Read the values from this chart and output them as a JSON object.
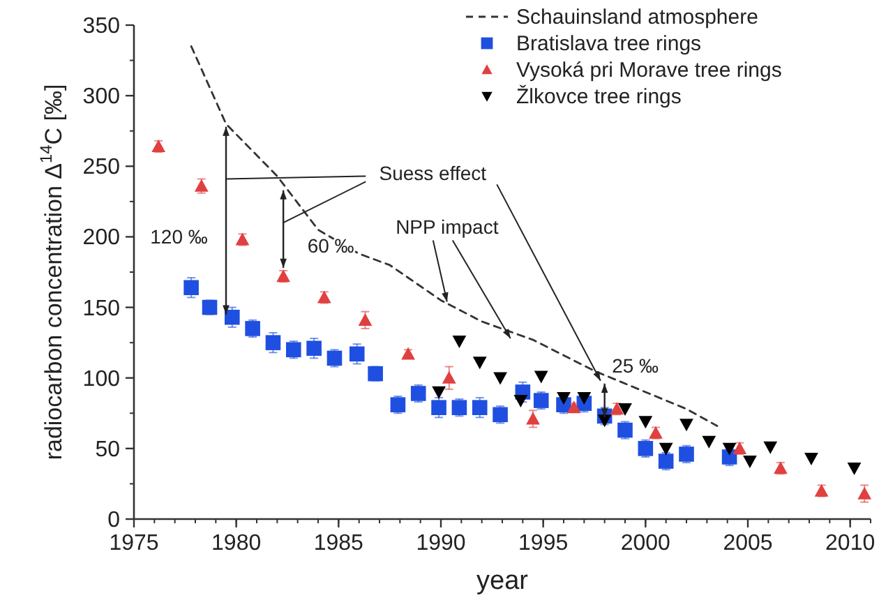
{
  "chart_data": {
    "type": "scatter",
    "xlabel": "year",
    "ylabel": "radiocarbon concentration Δ$^{14}$C [‰]",
    "xlim": [
      1975,
      2011
    ],
    "xticks": [
      1975,
      1980,
      1985,
      1990,
      1995,
      2000,
      2005,
      2010
    ],
    "ylim": [
      0,
      350
    ],
    "yticks": [
      0,
      50,
      100,
      150,
      200,
      250,
      300,
      350
    ],
    "legend": "top right",
    "grid": false,
    "series": [
      {
        "name": "Schauinsland atmosphere",
        "type": "line",
        "line_style": "dashed",
        "marker": "none",
        "color": "#333333",
        "x": [
          1977.8,
          1979.5,
          1982,
          1984,
          1986,
          1987.5,
          1990,
          1992,
          1994.5,
          1997.5,
          2000,
          2002,
          2003.5
        ],
        "values": [
          335,
          280,
          243,
          205,
          188,
          180,
          155,
          140,
          127,
          105,
          90,
          78,
          66
        ]
      },
      {
        "name": "Bratislava tree rings",
        "marker": "square",
        "color": "#1f4fe0",
        "x": [
          1977.8,
          1978.7,
          1979.8,
          1980.8,
          1981.8,
          1982.8,
          1983.8,
          1984.8,
          1985.9,
          1986.8,
          1987.9,
          1988.9,
          1989.9,
          1990.9,
          1991.9,
          1992.9,
          1994,
          1994.9,
          1996,
          1997,
          1998,
          1999,
          2000,
          2001,
          2002,
          2004.1
        ],
        "values": [
          164,
          150,
          143,
          135,
          125,
          120,
          121,
          114,
          117,
          103,
          81,
          89,
          79,
          79,
          79,
          74,
          90,
          84,
          81,
          82,
          73,
          63,
          50,
          41,
          46,
          44
        ],
        "errors": [
          7,
          5,
          7,
          6,
          7,
          6,
          7,
          6,
          7,
          5,
          6,
          6,
          7,
          6,
          7,
          6,
          7,
          6,
          6,
          6,
          6,
          6,
          6,
          6,
          6,
          6
        ]
      },
      {
        "name": "Vysoká pri Morave tree rings",
        "marker": "triangle",
        "color": "#e04040",
        "x": [
          1976.2,
          1978.3,
          1980.3,
          1982.3,
          1984.3,
          1986.3,
          1988.4,
          1990.4,
          1994.5,
          1996.5,
          1998.6,
          2000.5,
          2004.6,
          2006.6,
          2008.6,
          2010.7
        ],
        "values": [
          264,
          236,
          198,
          172,
          157,
          141,
          117,
          100,
          71,
          79,
          78,
          61,
          50,
          36,
          20,
          18
        ],
        "errors": [
          4,
          5,
          4,
          4,
          4,
          6,
          3,
          8,
          6,
          3,
          4,
          4,
          4,
          4,
          4,
          6
        ]
      },
      {
        "name": "Žlkovce tree rings",
        "marker": "triangle-down",
        "color": "#000000",
        "x": [
          1989.9,
          1990.9,
          1991.9,
          1992.9,
          1993.9,
          1994.9,
          1996,
          1997,
          1998,
          1999,
          2000,
          2001,
          2002,
          2003.1,
          2004.1,
          2005.1,
          2006.1,
          2008.1,
          2010.2
        ],
        "values": [
          90,
          126,
          111,
          100,
          84,
          101,
          86,
          86,
          70,
          78,
          69,
          50,
          67,
          55,
          50,
          41,
          51,
          43,
          36
        ]
      }
    ],
    "annotations": [
      "Suess effect",
      "120 ‰",
      {
        "text": "60 ‰",
        "x": 1982.3,
        "y": 172
      },
      {
        "text": "NPP impact",
        "x": 1990.3,
        "y": 153
      },
      "25 ‰"
    ]
  }
}
